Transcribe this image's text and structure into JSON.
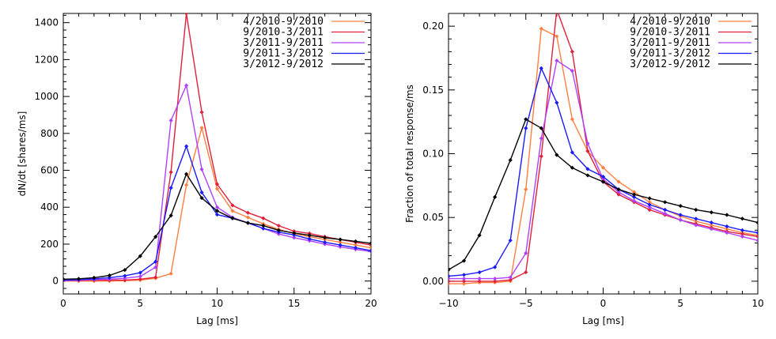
{
  "chart_data": [
    {
      "type": "line",
      "title": "",
      "xlabel": "Lag [ms]",
      "ylabel": "dN/dt [shares/ms]",
      "xlim": [
        0,
        20
      ],
      "ylim": [
        -70,
        1450
      ],
      "xticks": [
        0,
        5,
        10,
        15,
        20
      ],
      "yticks": [
        0,
        200,
        400,
        600,
        800,
        1000,
        1200,
        1400
      ],
      "legend_position": "top-right",
      "x": [
        0,
        1,
        2,
        3,
        4,
        5,
        6,
        7,
        8,
        9,
        10,
        11,
        12,
        13,
        14,
        15,
        16,
        17,
        18,
        19,
        20
      ],
      "series": [
        {
          "name": "4/2010-9/2010",
          "color": "#ff8040",
          "values": [
            0,
            0,
            0,
            0,
            2,
            5,
            15,
            40,
            520,
            830,
            500,
            380,
            345,
            310,
            280,
            258,
            240,
            225,
            210,
            195,
            180
          ]
        },
        {
          "name": "9/2010-3/2011",
          "color": "#e0203a",
          "values": [
            2,
            3,
            5,
            5,
            5,
            10,
            20,
            590,
            1450,
            915,
            525,
            410,
            370,
            340,
            300,
            270,
            258,
            240,
            225,
            210,
            195
          ]
        },
        {
          "name": "3/2011-9/2011",
          "color": "#b040ff",
          "values": [
            3,
            5,
            8,
            10,
            15,
            25,
            75,
            870,
            1060,
            605,
            400,
            345,
            315,
            285,
            255,
            235,
            218,
            200,
            185,
            172,
            160
          ]
        },
        {
          "name": "9/2011-3/2012",
          "color": "#1a1aff",
          "values": [
            5,
            8,
            12,
            18,
            28,
            45,
            105,
            505,
            730,
            480,
            360,
            340,
            315,
            285,
            265,
            250,
            228,
            210,
            195,
            180,
            165
          ]
        },
        {
          "name": "3/2012-9/2012",
          "color": "#000000",
          "values": [
            10,
            12,
            18,
            30,
            60,
            135,
            240,
            355,
            580,
            450,
            380,
            340,
            315,
            300,
            275,
            260,
            248,
            235,
            225,
            215,
            205
          ]
        }
      ]
    },
    {
      "type": "line",
      "title": "",
      "xlabel": "Lag [ms]",
      "ylabel": "Fraction of total response/ms",
      "xlim": [
        -10,
        10
      ],
      "ylim": [
        -0.01,
        0.21
      ],
      "xticks": [
        -10,
        -5,
        0,
        5,
        10
      ],
      "yticks": [
        0.0,
        0.05,
        0.1,
        0.15,
        0.2
      ],
      "ytick_labels": [
        "0.00",
        "0.05",
        "0.10",
        "0.15",
        "0.20"
      ],
      "legend_position": "top-right",
      "x": [
        -10,
        -9,
        -8,
        -7,
        -6,
        -5,
        -4,
        -3,
        -2,
        -1,
        0,
        1,
        2,
        3,
        4,
        5,
        6,
        7,
        8,
        9,
        10
      ],
      "series": [
        {
          "name": "4/2010-9/2010",
          "color": "#ff8040",
          "values": [
            -0.002,
            -0.002,
            -0.001,
            -0.001,
            0.0,
            0.072,
            0.198,
            0.192,
            0.127,
            0.102,
            0.089,
            0.078,
            0.07,
            0.062,
            0.056,
            0.051,
            0.047,
            0.044,
            0.041,
            0.038,
            0.036
          ]
        },
        {
          "name": "9/2010-3/2011",
          "color": "#e0203a",
          "values": [
            0.0,
            0.0,
            0.0,
            0.0,
            0.001,
            0.007,
            0.098,
            0.213,
            0.18,
            0.102,
            0.078,
            0.068,
            0.062,
            0.056,
            0.052,
            0.048,
            0.045,
            0.042,
            0.039,
            0.037,
            0.035
          ]
        },
        {
          "name": "3/2011-9/2011",
          "color": "#b040ff",
          "values": [
            0.002,
            0.002,
            0.002,
            0.002,
            0.003,
            0.022,
            0.112,
            0.173,
            0.165,
            0.108,
            0.08,
            0.07,
            0.063,
            0.058,
            0.053,
            0.048,
            0.044,
            0.041,
            0.038,
            0.035,
            0.032
          ]
        },
        {
          "name": "9/2011-3/2012",
          "color": "#1a1aff",
          "values": [
            0.004,
            0.005,
            0.007,
            0.011,
            0.032,
            0.12,
            0.167,
            0.14,
            0.101,
            0.088,
            0.082,
            0.072,
            0.066,
            0.06,
            0.056,
            0.052,
            0.049,
            0.046,
            0.043,
            0.04,
            0.038
          ]
        },
        {
          "name": "3/2012-9/2012",
          "color": "#000000",
          "values": [
            0.009,
            0.016,
            0.036,
            0.066,
            0.095,
            0.127,
            0.12,
            0.099,
            0.089,
            0.083,
            0.078,
            0.072,
            0.068,
            0.065,
            0.062,
            0.059,
            0.056,
            0.054,
            0.052,
            0.049,
            0.046
          ]
        }
      ]
    }
  ]
}
